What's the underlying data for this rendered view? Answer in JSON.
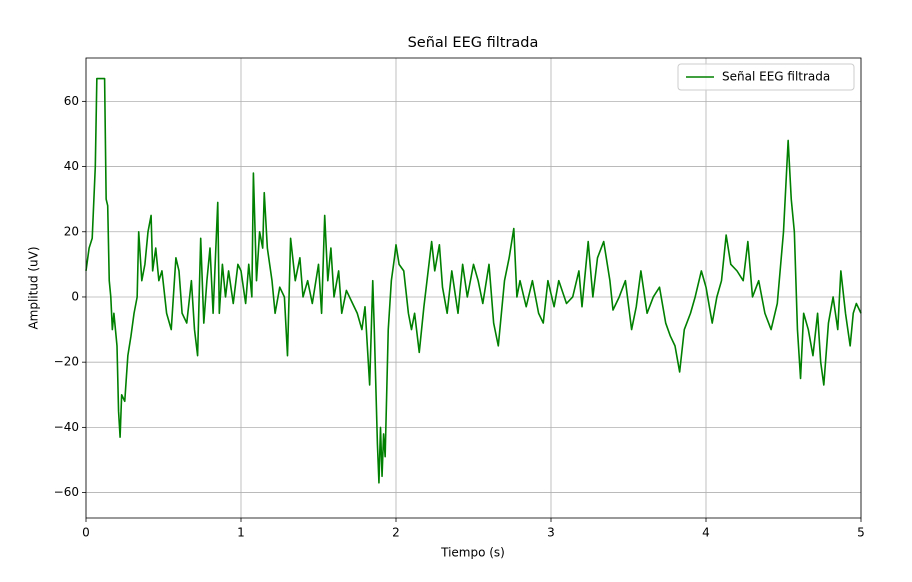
{
  "chart_data": {
    "type": "line",
    "title": "Señal EEG filtrada",
    "x_label": "Tiempo (s)",
    "y_label": "Amplitud (uV)",
    "xlim": [
      0,
      5
    ],
    "ylim": [
      -67.8,
      73.3
    ],
    "xticks": [
      0,
      1,
      2,
      3,
      4,
      5
    ],
    "yticks": [
      {
        "value": -60,
        "label": "−60"
      },
      {
        "value": -40,
        "label": "−40"
      },
      {
        "value": -20,
        "label": "−20"
      },
      0,
      20,
      40,
      60
    ],
    "grid": true,
    "legend": "upper right",
    "x": [
      0,
      0.02,
      0.04,
      0.06,
      0.07,
      0.12,
      0.13,
      0.14,
      0.15,
      0.16,
      0.17,
      0.18,
      0.2,
      0.21,
      0.22,
      0.23,
      0.25,
      0.27,
      0.29,
      0.31,
      0.33,
      0.34,
      0.36,
      0.38,
      0.4,
      0.42,
      0.43,
      0.45,
      0.47,
      0.49,
      0.52,
      0.55,
      0.58,
      0.6,
      0.62,
      0.65,
      0.68,
      0.7,
      0.72,
      0.74,
      0.76,
      0.78,
      0.8,
      0.82,
      0.85,
      0.86,
      0.88,
      0.9,
      0.92,
      0.95,
      0.98,
      1.0,
      1.03,
      1.05,
      1.07,
      1.08,
      1.1,
      1.12,
      1.14,
      1.15,
      1.17,
      1.2,
      1.22,
      1.25,
      1.28,
      1.3,
      1.32,
      1.35,
      1.38,
      1.4,
      1.43,
      1.46,
      1.5,
      1.52,
      1.54,
      1.56,
      1.58,
      1.6,
      1.63,
      1.65,
      1.68,
      1.72,
      1.75,
      1.78,
      1.8,
      1.83,
      1.85,
      1.86,
      1.88,
      1.89,
      1.9,
      1.91,
      1.92,
      1.93,
      1.95,
      1.97,
      1.99,
      2.0,
      2.02,
      2.05,
      2.08,
      2.1,
      2.12,
      2.15,
      2.18,
      2.2,
      2.23,
      2.25,
      2.28,
      2.3,
      2.33,
      2.36,
      2.4,
      2.43,
      2.46,
      2.5,
      2.53,
      2.56,
      2.6,
      2.63,
      2.66,
      2.7,
      2.73,
      2.76,
      2.78,
      2.8,
      2.84,
      2.88,
      2.92,
      2.95,
      2.98,
      3.02,
      3.05,
      3.1,
      3.14,
      3.18,
      3.2,
      3.24,
      3.27,
      3.3,
      3.34,
      3.38,
      3.4,
      3.44,
      3.48,
      3.52,
      3.55,
      3.58,
      3.62,
      3.66,
      3.7,
      3.74,
      3.77,
      3.8,
      3.83,
      3.86,
      3.9,
      3.93,
      3.97,
      4.0,
      4.04,
      4.07,
      4.1,
      4.13,
      4.16,
      4.2,
      4.24,
      4.27,
      4.3,
      4.34,
      4.38,
      4.42,
      4.46,
      4.5,
      4.53,
      4.55,
      4.57,
      4.59,
      4.61,
      4.63,
      4.66,
      4.69,
      4.72,
      4.74,
      4.76,
      4.79,
      4.82,
      4.85,
      4.87,
      4.9,
      4.93,
      4.95,
      4.97,
      5.0
    ],
    "series": [
      {
        "name": "Señal EEG filtrada",
        "color": "#008000",
        "values": [
          8,
          15,
          18,
          40,
          67,
          67,
          30,
          28,
          5,
          0,
          -10,
          -5,
          -15,
          -35,
          -43,
          -30,
          -32,
          -18,
          -12,
          -5,
          0,
          20,
          5,
          10,
          20,
          25,
          8,
          15,
          5,
          8,
          -5,
          -10,
          12,
          8,
          -5,
          -8,
          5,
          -10,
          -18,
          18,
          -8,
          5,
          15,
          -5,
          29,
          -5,
          10,
          0,
          8,
          -2,
          10,
          8,
          -2,
          10,
          0,
          38,
          5,
          20,
          15,
          32,
          15,
          5,
          -5,
          3,
          0,
          -18,
          18,
          5,
          12,
          0,
          5,
          -2,
          10,
          -5,
          25,
          5,
          15,
          0,
          8,
          -5,
          2,
          -2,
          -5,
          -10,
          -3,
          -27,
          5,
          -10,
          -45,
          -57,
          -40,
          -55,
          -42,
          -49,
          -10,
          5,
          12,
          16,
          10,
          8,
          -5,
          -10,
          -5,
          -17,
          -3,
          5,
          17,
          8,
          16,
          3,
          -5,
          8,
          -5,
          10,
          0,
          10,
          5,
          -2,
          10,
          -8,
          -15,
          5,
          12,
          21,
          0,
          5,
          -3,
          5,
          -5,
          -8,
          5,
          -3,
          5,
          -2,
          0,
          8,
          -3,
          17,
          0,
          12,
          17,
          5,
          -4,
          0,
          5,
          -10,
          -3,
          8,
          -5,
          0,
          3,
          -8,
          -12,
          -15,
          -23,
          -10,
          -5,
          0,
          8,
          3,
          -8,
          0,
          5,
          19,
          10,
          8,
          5,
          17,
          0,
          5,
          -5,
          -10,
          -2,
          20,
          48,
          30,
          20,
          -10,
          -25,
          -5,
          -10,
          -18,
          -5,
          -20,
          -27,
          -8,
          0,
          -10,
          8,
          -5,
          -15,
          -5,
          -2,
          -5
        ]
      }
    ]
  }
}
